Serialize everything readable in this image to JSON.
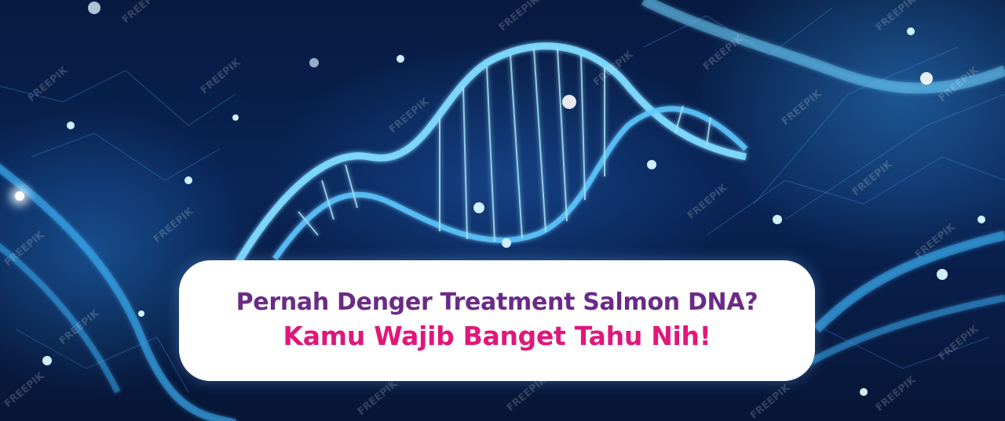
{
  "headline": {
    "line1": "Pernah Denger Treatment Salmon DNA?",
    "line2": "Kamu Wajib Banget Tahu Nih!"
  },
  "watermark": {
    "text": "FREEPIK"
  },
  "colors": {
    "line1": "#6a2b86",
    "line2": "#e0177a",
    "card": "#ffffff",
    "background": "#0a2456",
    "glow": "#5ec8ff"
  },
  "icons": [
    "dna-helix-icon"
  ]
}
